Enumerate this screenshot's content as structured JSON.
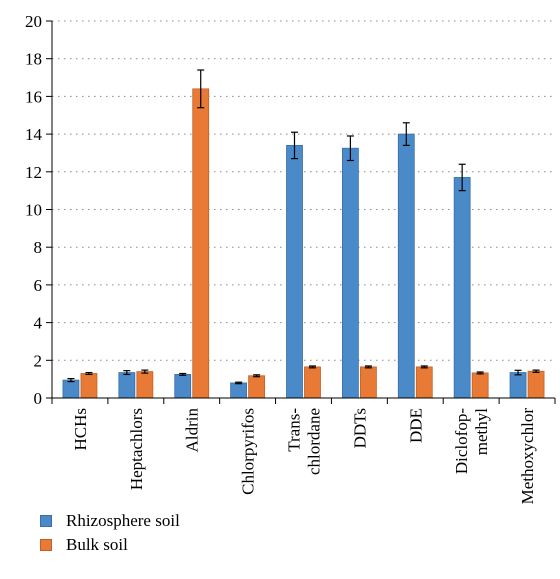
{
  "chart_data": {
    "type": "bar",
    "categories": [
      [
        "HCHs"
      ],
      [
        "Heptachlors"
      ],
      [
        "Aldrin"
      ],
      [
        "Chlorpyrifos"
      ],
      [
        "Trans-",
        "chlordane"
      ],
      [
        "DDTs"
      ],
      [
        "DDE"
      ],
      [
        "Diclofop-",
        "methyl"
      ],
      [
        "Methoxychlor"
      ]
    ],
    "series": [
      {
        "name": "Rhizosphere soil",
        "color": "#4a8ac9",
        "values": [
          0.95,
          1.35,
          1.25,
          0.8,
          13.4,
          13.25,
          14.0,
          11.7,
          1.35
        ],
        "errors": [
          0.08,
          0.1,
          0.05,
          0.04,
          0.7,
          0.65,
          0.6,
          0.7,
          0.12
        ]
      },
      {
        "name": "Bulk soil",
        "color": "#e87a35",
        "values": [
          1.3,
          1.4,
          16.4,
          1.18,
          1.65,
          1.65,
          1.65,
          1.33,
          1.42
        ],
        "errors": [
          0.05,
          0.08,
          1.0,
          0.05,
          0.05,
          0.05,
          0.05,
          0.05,
          0.06
        ]
      }
    ],
    "yticks": [
      "0",
      "2",
      "4",
      "6",
      "8",
      "10",
      "12",
      "14",
      "16",
      "18",
      "20"
    ],
    "ylim": [
      0,
      20
    ],
    "grid": "horizontal dotted",
    "legend_position": "bottom-left"
  }
}
